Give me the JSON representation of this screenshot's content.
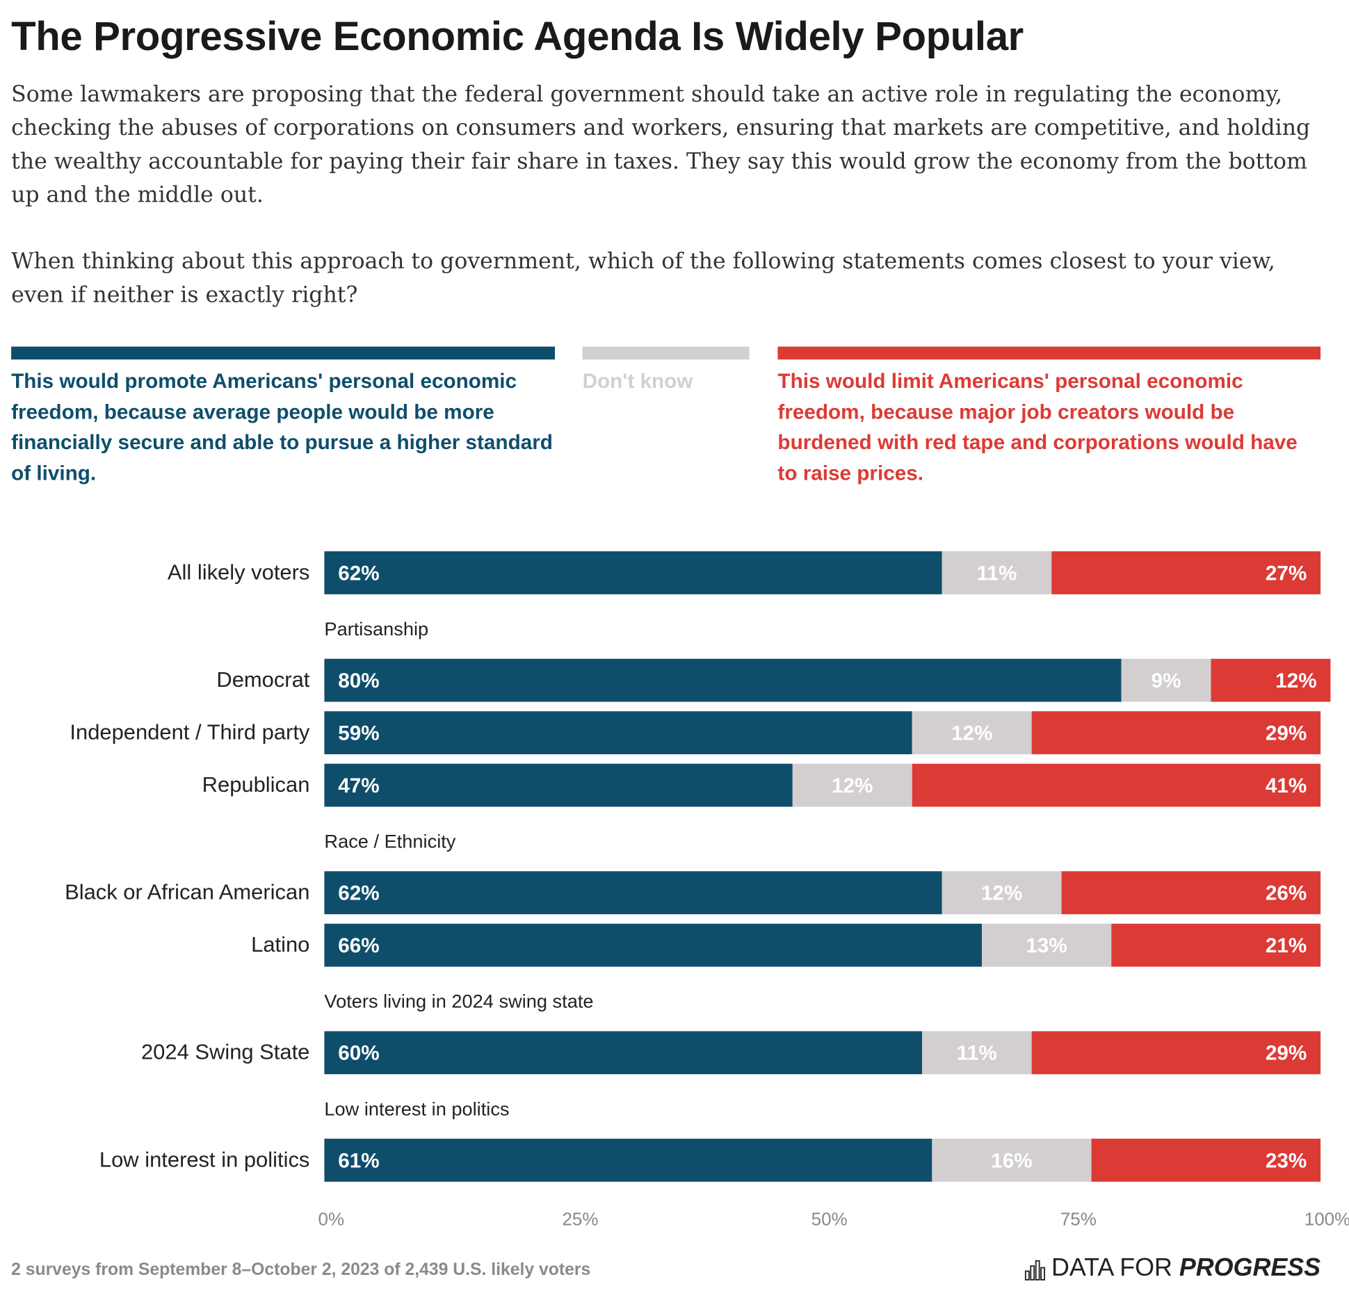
{
  "chart_data": {
    "type": "stacked-bar",
    "title": "The Progressive Economic Agenda Is Widely Popular",
    "subtitle": [
      "Some lawmakers are proposing that the federal government should take an active role in regulating the economy, checking the abuses of corporations on consumers and workers, ensuring that markets are competitive, and holding the wealthy accountable for paying their fair share in taxes. They say this would grow the economy from the bottom up and the middle out.",
      "When thinking about this approach to government, which of the following statements comes closest to your view, even if neither is exactly right?"
    ],
    "categories": [
      "All likely voters",
      "Democrat",
      "Independent / Third party",
      "Republican",
      "Black or African American",
      "Latino",
      "2024 Swing State",
      "Low interest in politics"
    ],
    "groups": [
      {
        "label": null,
        "size": 1
      },
      {
        "label": "Partisanship",
        "size": 3
      },
      {
        "label": "Race / Ethnicity",
        "size": 2
      },
      {
        "label": "Voters living in 2024 swing state",
        "size": 1
      },
      {
        "label": "Low interest in politics",
        "size": 1
      }
    ],
    "series": [
      {
        "name": "This would promote Americans' personal economic freedom, because average people would be more financially secure and able to pursue a higher standard of living.",
        "color": "#0e4e6b",
        "text_color": "#0e4e6b",
        "values": [
          62,
          80,
          59,
          47,
          62,
          66,
          60,
          61
        ],
        "value_labels": [
          "62%",
          "80%",
          "59%",
          "47%",
          "62%",
          "66%",
          "60%",
          "61%"
        ]
      },
      {
        "name": "Don't know",
        "color": "#d3cfd1",
        "text_color": "#d3cfd1",
        "values": [
          11,
          9,
          12,
          12,
          12,
          13,
          11,
          16
        ],
        "value_labels": [
          "11%",
          "9%",
          "12%",
          "12%",
          "12%",
          "13%",
          "11%",
          "16%"
        ]
      },
      {
        "name": "This would limit Americans' personal economic freedom, because major job creators would be burdened with red tape and corporations would have to raise prices.",
        "color": "#dc3a35",
        "text_color": "#dc3a35",
        "values": [
          27,
          12,
          29,
          41,
          26,
          21,
          29,
          23
        ],
        "value_labels": [
          "27%",
          "12%",
          "29%",
          "41%",
          "26%",
          "21%",
          "29%",
          "23%"
        ]
      }
    ],
    "xlim": [
      0,
      100
    ],
    "xticks": [
      {
        "value": 0,
        "label": "0%"
      },
      {
        "value": 25,
        "label": "25%"
      },
      {
        "value": 50,
        "label": "50%"
      },
      {
        "value": 75,
        "label": "75%"
      },
      {
        "value": 100,
        "label": "100%"
      }
    ],
    "source": "2 surveys from September 8–October 2, 2023 of 2,439 U.S. likely voters",
    "logo": {
      "prefix": "DATA FOR",
      "emphasis": "PROGRESS"
    }
  }
}
